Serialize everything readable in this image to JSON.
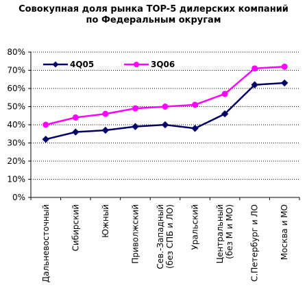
{
  "chart_data": {
    "type": "line",
    "title": "Совокупная доля рынка TOP-5 дилерских компаний по Федеральным округам",
    "title_lines": [
      "Совокупная доля рынка TOP-5 дилерских компаний",
      "по Федеральным округам"
    ],
    "categories": [
      [
        "Дальневосточный"
      ],
      [
        "Сибирский"
      ],
      [
        "Южный"
      ],
      [
        "Приволжский"
      ],
      [
        "Сев.-Западный",
        "(без СПБ и ЛО)"
      ],
      [
        "Уральский"
      ],
      [
        "Центральный",
        "(без М и МО)"
      ],
      [
        "С.Петербург и ЛО"
      ],
      [
        "Москва и МО"
      ]
    ],
    "ylim": [
      0,
      80
    ],
    "yticks": [
      0,
      10,
      20,
      30,
      40,
      50,
      60,
      70,
      80
    ],
    "ytick_labels": [
      "0%",
      "10%",
      "20%",
      "30%",
      "40%",
      "50%",
      "60%",
      "70%",
      "80%"
    ],
    "grid": "horizontal dotted",
    "legend_position": "top-left",
    "series": [
      {
        "name": "4Q05",
        "color": "#000066",
        "marker": "diamond",
        "values": [
          32,
          36,
          37,
          39,
          40,
          38,
          46,
          62,
          63
        ]
      },
      {
        "name": "3Q06",
        "color": "#ff00ff",
        "marker": "circle",
        "values": [
          40,
          44,
          46,
          49,
          50,
          51,
          57,
          71,
          72
        ]
      }
    ]
  }
}
